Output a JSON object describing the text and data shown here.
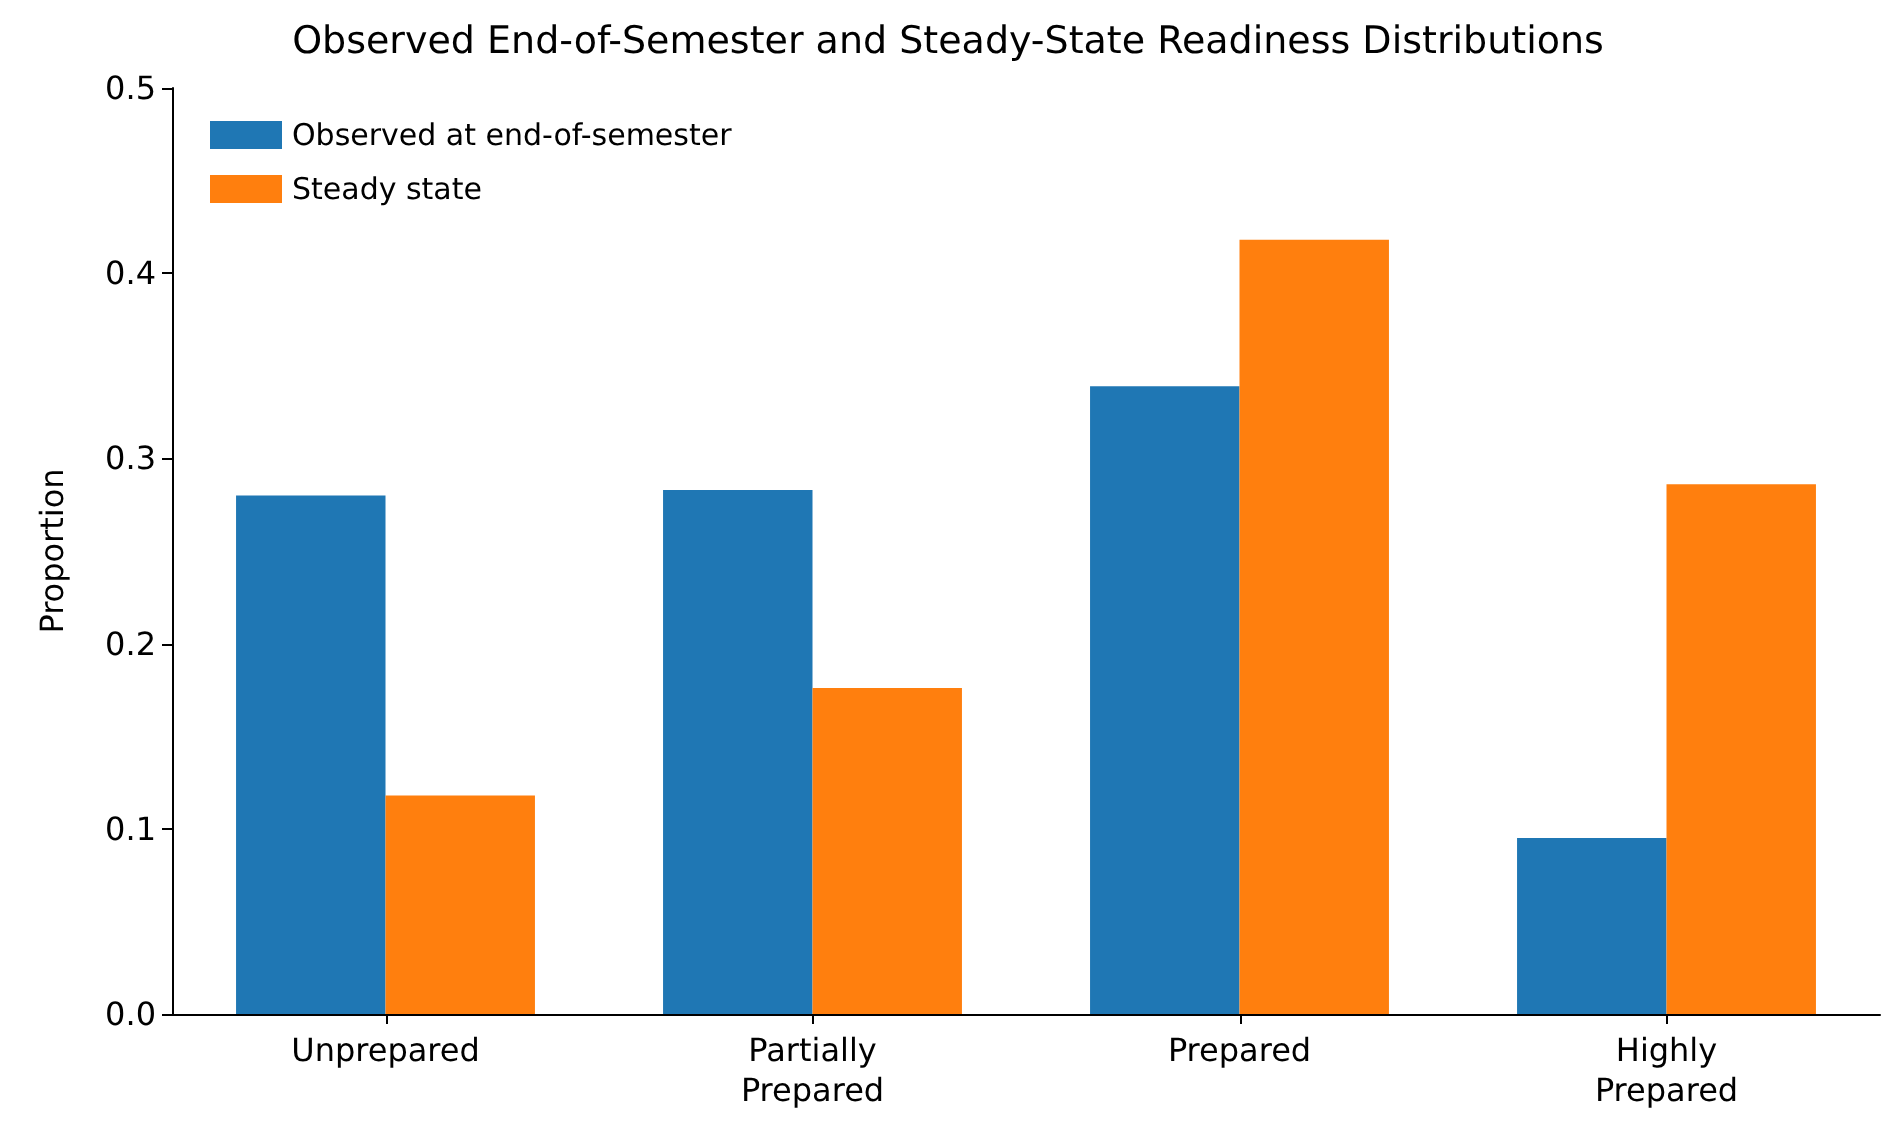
{
  "chart_data": {
    "type": "bar",
    "title": "Observed End-of-Semester and Steady-State Readiness Distributions",
    "ylabel": "Proportion",
    "categories": [
      "Unprepared",
      "Partially Prepared",
      "Prepared",
      "Highly Prepared"
    ],
    "series": [
      {
        "name": "Observed at end-of-semester",
        "color": "#1f77b4",
        "values": [
          0.28,
          0.283,
          0.339,
          0.095
        ]
      },
      {
        "name": "Steady state",
        "color": "#ff7f0e",
        "values": [
          0.118,
          0.176,
          0.418,
          0.286
        ]
      }
    ],
    "ylim": [
      0,
      0.5
    ],
    "yticks": [
      {
        "value": 0,
        "label": "0.0"
      },
      0.1,
      0.2,
      0.3,
      0.4,
      0.5
    ],
    "grid": false,
    "legend": "top left"
  }
}
